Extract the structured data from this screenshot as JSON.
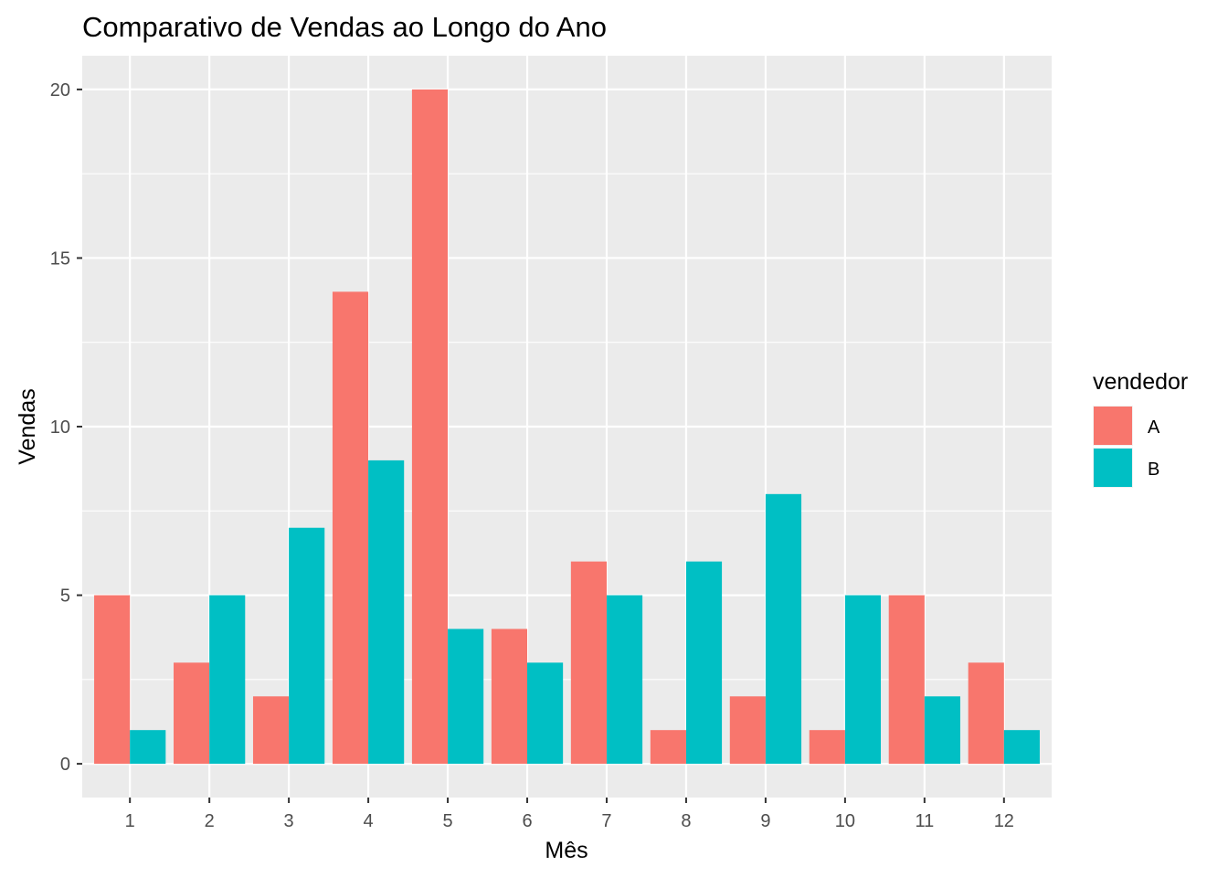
{
  "chart_data": {
    "type": "bar",
    "title": "Comparativo de Vendas ao Longo do Ano",
    "xlabel": "Mês",
    "ylabel": "Vendas",
    "categories": [
      "1",
      "2",
      "3",
      "4",
      "5",
      "6",
      "7",
      "8",
      "9",
      "10",
      "11",
      "12"
    ],
    "series": [
      {
        "name": "A",
        "color": "#F8766D",
        "values": [
          5,
          3,
          2,
          14,
          20,
          4,
          6,
          1,
          2,
          1,
          5,
          3
        ]
      },
      {
        "name": "B",
        "color": "#00BFC4",
        "values": [
          1,
          5,
          7,
          9,
          4,
          3,
          5,
          6,
          8,
          5,
          2,
          1
        ]
      }
    ],
    "y_ticks": [
      0,
      5,
      10,
      15,
      20
    ],
    "ylim": [
      -1,
      21
    ],
    "grid": true,
    "panel_background": "#EBEBEB",
    "grid_color": "#FFFFFF",
    "legend": {
      "title": "vendedor",
      "position": "right"
    }
  }
}
